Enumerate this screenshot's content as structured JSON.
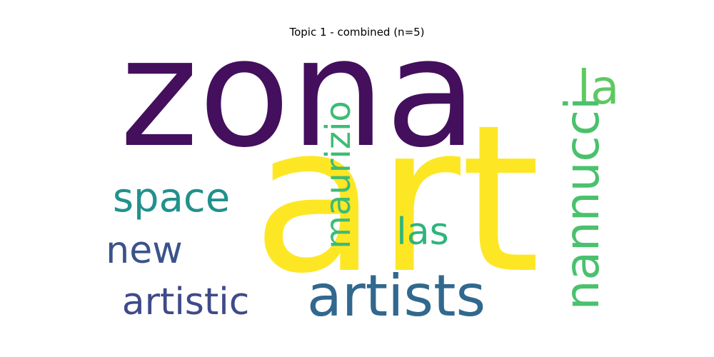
{
  "chart_data": {
    "type": "wordcloud",
    "title": "Topic 1 - combined (n=5)",
    "words": [
      {
        "text": "zona",
        "color": "#440f5c"
      },
      {
        "text": "art",
        "color": "#fde725"
      },
      {
        "text": "artists",
        "color": "#31688e"
      },
      {
        "text": "la",
        "color": "#5ec962"
      },
      {
        "text": "nannucci",
        "color": "#4ac16d"
      },
      {
        "text": "maurizio",
        "color": "#3dbc74"
      },
      {
        "text": "space",
        "color": "#21918c"
      },
      {
        "text": "las",
        "color": "#2fb47c"
      },
      {
        "text": "new",
        "color": "#3b528b"
      },
      {
        "text": "artistic",
        "color": "#3e4a89"
      }
    ]
  }
}
